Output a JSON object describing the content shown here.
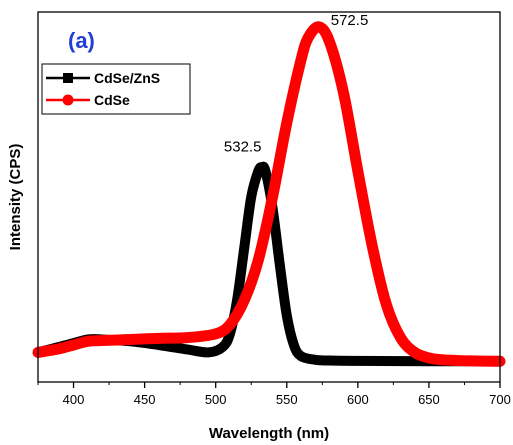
{
  "chart_data": {
    "type": "line",
    "panel_label": "(a)",
    "xlabel": "Wavelength (nm)",
    "ylabel": "Intensity (CPS)",
    "xlim": [
      375,
      700
    ],
    "ylim": [
      0,
      1.0
    ],
    "x_ticks": [
      400,
      450,
      500,
      550,
      600,
      650,
      700
    ],
    "y_ticks_labeled": false,
    "grid": false,
    "legend_position": "top-left",
    "series": [
      {
        "name": "CdSe/ZnS",
        "color": "#000000",
        "marker": "square",
        "x": [
          375,
          390,
          400,
          410,
          420,
          440,
          460,
          480,
          495,
          505,
          510,
          515,
          520,
          525,
          530,
          532.5,
          535,
          540,
          545,
          550,
          555,
          560,
          570,
          580,
          600,
          650,
          700
        ],
        "y": [
          0.08,
          0.095,
          0.105,
          0.115,
          0.115,
          0.11,
          0.1,
          0.088,
          0.08,
          0.095,
          0.13,
          0.22,
          0.36,
          0.5,
          0.57,
          0.58,
          0.57,
          0.47,
          0.32,
          0.18,
          0.1,
          0.07,
          0.06,
          0.058,
          0.057,
          0.056,
          0.056
        ]
      },
      {
        "name": "CdSe",
        "color": "#ff0000",
        "marker": "circle",
        "x": [
          375,
          390,
          400,
          410,
          420,
          440,
          460,
          480,
          500,
          510,
          520,
          530,
          540,
          550,
          560,
          565,
          572.5,
          580,
          590,
          600,
          610,
          620,
          630,
          640,
          650,
          660,
          680,
          700
        ],
        "y": [
          0.08,
          0.09,
          0.1,
          0.11,
          0.112,
          0.115,
          0.118,
          0.12,
          0.13,
          0.155,
          0.22,
          0.33,
          0.5,
          0.7,
          0.87,
          0.93,
          0.96,
          0.92,
          0.78,
          0.57,
          0.37,
          0.21,
          0.12,
          0.08,
          0.065,
          0.06,
          0.057,
          0.056
        ]
      }
    ],
    "annotations": [
      {
        "text": "532.5",
        "x": 532.5,
        "y": 0.58
      },
      {
        "text": "572.5",
        "x": 572.5,
        "y": 0.96
      }
    ]
  }
}
